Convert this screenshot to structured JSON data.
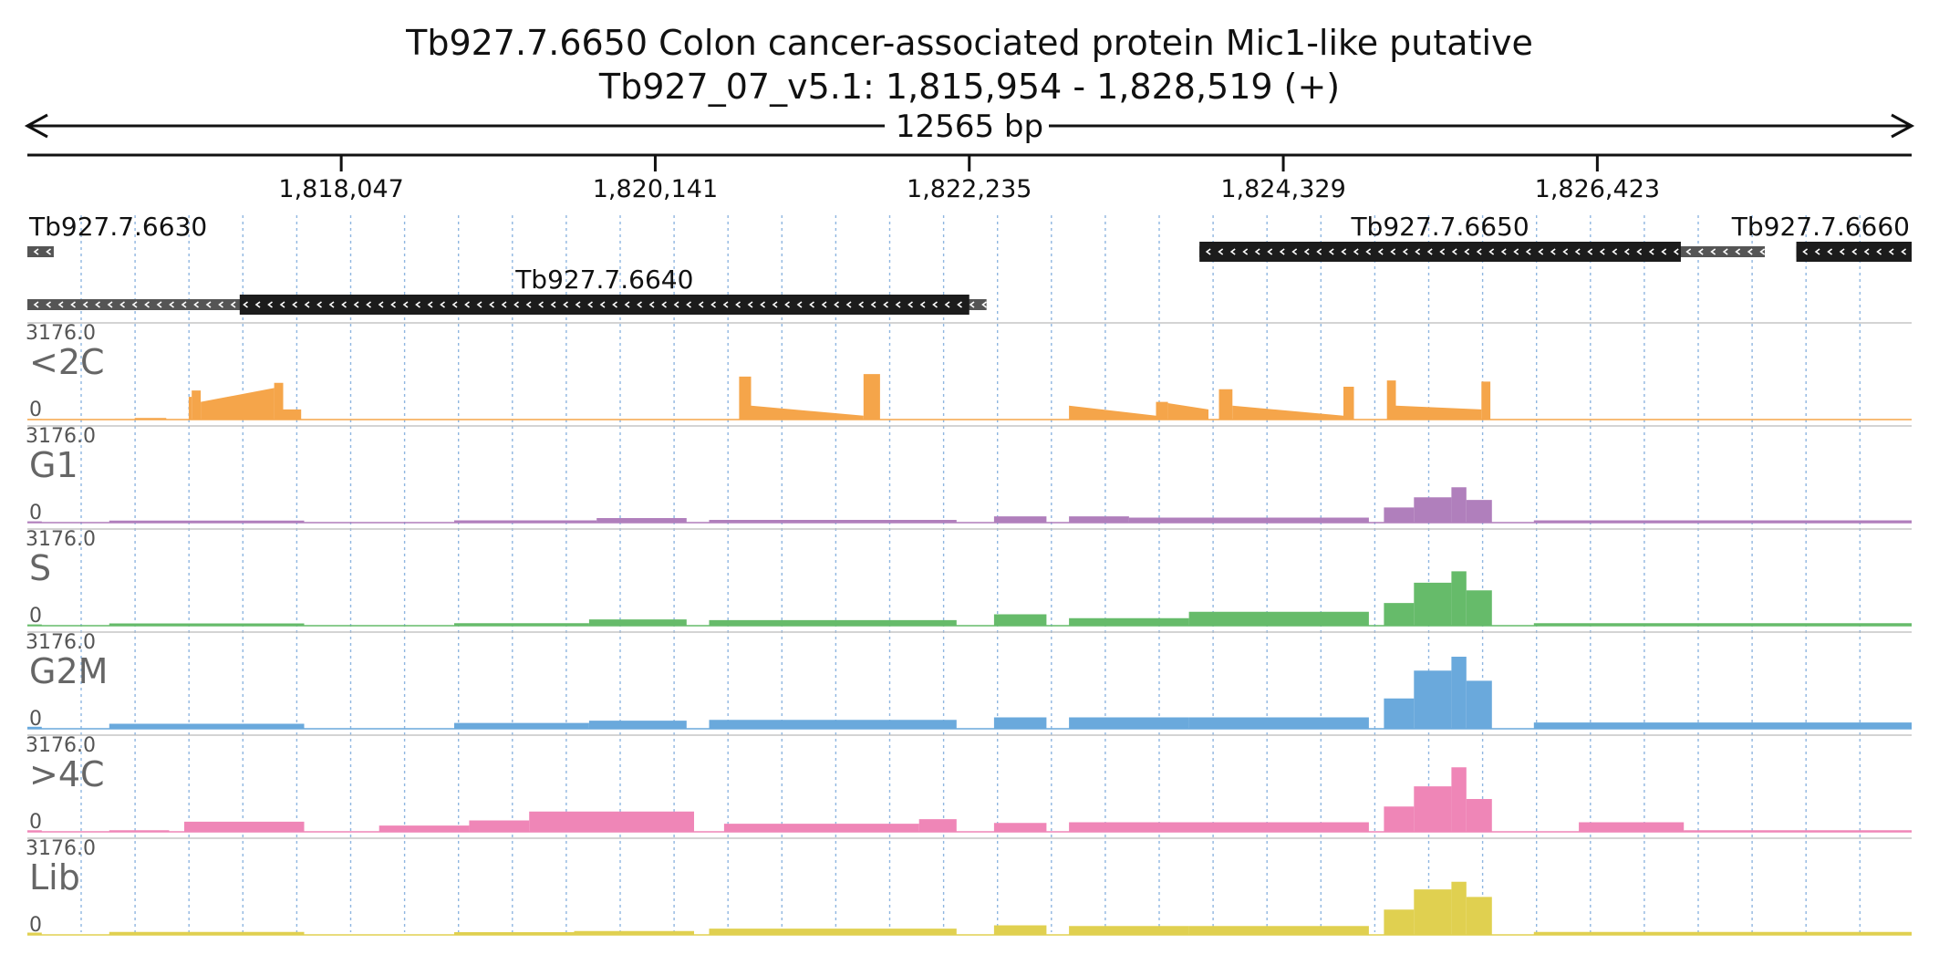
{
  "colors": {
    "background": "#ffffff",
    "text": "#111111",
    "gene_fill": "#1c1c1c",
    "gene_utr": "#555555",
    "grid": "#8fb6e0",
    "track_label": "#666666"
  },
  "chart_data": {
    "type": "area",
    "title": "Tb927.7.6650  Colon cancer-associated protein Mic1-like  putative",
    "subtitle": "Tb927_07_v5.1: 1,815,954 - 1,828,519 (+)",
    "span_label": "12565 bp",
    "region": {
      "chrom": "Tb927_07_v5.1",
      "start": 1815954,
      "end": 1828519,
      "strand": "+"
    },
    "xlim": [
      1815954,
      1828519
    ],
    "x_ticks": [
      {
        "value": 1818047,
        "label": "1,818,047"
      },
      {
        "value": 1820141,
        "label": "1,820,141"
      },
      {
        "value": 1822235,
        "label": "1,822,235"
      },
      {
        "value": 1824329,
        "label": "1,824,329"
      },
      {
        "value": 1826423,
        "label": "1,826,423"
      }
    ],
    "grid": true,
    "grid_style": "dotted-vertical",
    "genes": [
      {
        "name": "Tb927.7.6630",
        "utr": [
          1815954,
          1816130
        ],
        "cds": null,
        "strand": "-",
        "row": 0,
        "label_anchor": "start"
      },
      {
        "name": "Tb927.7.6640",
        "utr": [
          1815954,
          1822350
        ],
        "cds": [
          1817370,
          1822235
        ],
        "strand": "-",
        "row": 1,
        "label_anchor": "middle"
      },
      {
        "name": "Tb927.7.6650",
        "utr": [
          1823770,
          1827540
        ],
        "cds": [
          1823770,
          1826980
        ],
        "strand": "-",
        "row": 0,
        "label_anchor": "middle"
      },
      {
        "name": "Tb927.7.6660",
        "utr": [
          1827750,
          1828519
        ],
        "cds": [
          1827750,
          1828519
        ],
        "strand": "-",
        "row": 0,
        "label_anchor": "end"
      }
    ],
    "tracks": [
      {
        "name": "<2C",
        "max_label": "3176.0",
        "min_label": "0",
        "ylim": [
          0,
          3176
        ],
        "color": "#f5a54a",
        "segments": [
          {
            "start": 1815954,
            "end": 1816050,
            "level": [
              20,
              20
            ]
          },
          {
            "start": 1816670,
            "end": 1816880,
            "level": [
              60,
              60
            ]
          },
          {
            "start": 1817030,
            "end": 1817050,
            "level": [
              900,
              900
            ]
          },
          {
            "start": 1817050,
            "end": 1817110,
            "level": [
              1150,
              1150
            ]
          },
          {
            "start": 1817110,
            "end": 1817600,
            "level": [
              700,
              1250
            ]
          },
          {
            "start": 1817600,
            "end": 1817660,
            "level": [
              1450,
              1450
            ]
          },
          {
            "start": 1817660,
            "end": 1817780,
            "level": [
              400,
              400
            ]
          },
          {
            "start": 1820700,
            "end": 1820780,
            "level": [
              1700,
              1700
            ]
          },
          {
            "start": 1820780,
            "end": 1821530,
            "level": [
              550,
              150
            ]
          },
          {
            "start": 1821530,
            "end": 1821640,
            "level": [
              1800,
              1800
            ]
          },
          {
            "start": 1822900,
            "end": 1823480,
            "level": [
              550,
              150
            ]
          },
          {
            "start": 1823480,
            "end": 1823560,
            "level": [
              700,
              700
            ]
          },
          {
            "start": 1823560,
            "end": 1823830,
            "level": [
              650,
              400
            ]
          },
          {
            "start": 1823900,
            "end": 1823990,
            "level": [
              1200,
              1200
            ]
          },
          {
            "start": 1823990,
            "end": 1824730,
            "level": [
              550,
              150
            ]
          },
          {
            "start": 1824730,
            "end": 1824800,
            "level": [
              1300,
              1300
            ]
          },
          {
            "start": 1825020,
            "end": 1825080,
            "level": [
              1550,
              1550
            ]
          },
          {
            "start": 1825080,
            "end": 1825650,
            "level": [
              550,
              400
            ]
          },
          {
            "start": 1825650,
            "end": 1825710,
            "level": [
              1500,
              1500
            ]
          }
        ]
      },
      {
        "name": "G1",
        "max_label": "3176.0",
        "min_label": "0",
        "ylim": [
          0,
          3176
        ],
        "color": "#b07fbc",
        "segments": [
          {
            "start": 1815954,
            "end": 1816050,
            "level": [
              50,
              50
            ]
          },
          {
            "start": 1816500,
            "end": 1817800,
            "level": [
              80,
              80
            ]
          },
          {
            "start": 1818800,
            "end": 1819750,
            "level": [
              90,
              90
            ]
          },
          {
            "start": 1819750,
            "end": 1820350,
            "level": [
              180,
              180
            ]
          },
          {
            "start": 1820500,
            "end": 1822150,
            "level": [
              110,
              110
            ]
          },
          {
            "start": 1822400,
            "end": 1822750,
            "level": [
              250,
              250
            ]
          },
          {
            "start": 1822900,
            "end": 1823300,
            "level": [
              250,
              250
            ]
          },
          {
            "start": 1823300,
            "end": 1824900,
            "level": [
              200,
              200
            ]
          },
          {
            "start": 1825000,
            "end": 1825200,
            "level": [
              600,
              600
            ]
          },
          {
            "start": 1825200,
            "end": 1825450,
            "level": [
              1000,
              1000
            ]
          },
          {
            "start": 1825450,
            "end": 1825550,
            "level": [
              1400,
              1400
            ]
          },
          {
            "start": 1825550,
            "end": 1825720,
            "level": [
              900,
              900
            ]
          },
          {
            "start": 1826000,
            "end": 1828519,
            "level": [
              90,
              90
            ]
          }
        ]
      },
      {
        "name": "S",
        "max_label": "3176.0",
        "min_label": "0",
        "ylim": [
          0,
          3176
        ],
        "color": "#66bb6a",
        "segments": [
          {
            "start": 1815954,
            "end": 1816050,
            "level": [
              50,
              50
            ]
          },
          {
            "start": 1816500,
            "end": 1817800,
            "level": [
              90,
              90
            ]
          },
          {
            "start": 1818800,
            "end": 1819700,
            "level": [
              100,
              100
            ]
          },
          {
            "start": 1819700,
            "end": 1820350,
            "level": [
              250,
              250
            ]
          },
          {
            "start": 1820500,
            "end": 1822150,
            "level": [
              220,
              220
            ]
          },
          {
            "start": 1822400,
            "end": 1822750,
            "level": [
              450,
              450
            ]
          },
          {
            "start": 1822900,
            "end": 1823700,
            "level": [
              300,
              300
            ]
          },
          {
            "start": 1823700,
            "end": 1824900,
            "level": [
              550,
              550
            ]
          },
          {
            "start": 1825000,
            "end": 1825200,
            "level": [
              900,
              900
            ]
          },
          {
            "start": 1825200,
            "end": 1825450,
            "level": [
              1700,
              1700
            ]
          },
          {
            "start": 1825450,
            "end": 1825550,
            "level": [
              2150,
              2150
            ]
          },
          {
            "start": 1825550,
            "end": 1825720,
            "level": [
              1400,
              1400
            ]
          },
          {
            "start": 1826000,
            "end": 1828519,
            "level": [
              100,
              100
            ]
          }
        ]
      },
      {
        "name": "G2M",
        "max_label": "3176.0",
        "min_label": "0",
        "ylim": [
          0,
          3176
        ],
        "color": "#6aa9dc",
        "segments": [
          {
            "start": 1815954,
            "end": 1816050,
            "level": [
              80,
              80
            ]
          },
          {
            "start": 1816500,
            "end": 1817800,
            "level": [
              200,
              200
            ]
          },
          {
            "start": 1818800,
            "end": 1819700,
            "level": [
              230,
              230
            ]
          },
          {
            "start": 1819700,
            "end": 1820350,
            "level": [
              320,
              320
            ]
          },
          {
            "start": 1820500,
            "end": 1822150,
            "level": [
              350,
              350
            ]
          },
          {
            "start": 1822400,
            "end": 1822750,
            "level": [
              450,
              450
            ]
          },
          {
            "start": 1822900,
            "end": 1823700,
            "level": [
              450,
              450
            ]
          },
          {
            "start": 1823700,
            "end": 1824900,
            "level": [
              450,
              450
            ]
          },
          {
            "start": 1825000,
            "end": 1825200,
            "level": [
              1200,
              1200
            ]
          },
          {
            "start": 1825200,
            "end": 1825450,
            "level": [
              2300,
              2300
            ]
          },
          {
            "start": 1825450,
            "end": 1825550,
            "level": [
              2850,
              2850
            ]
          },
          {
            "start": 1825550,
            "end": 1825720,
            "level": [
              1900,
              1900
            ]
          },
          {
            "start": 1826000,
            "end": 1828519,
            "level": [
              250,
              250
            ]
          }
        ]
      },
      {
        "name": ">4C",
        "max_label": "3176.0",
        "min_label": "0",
        "ylim": [
          0,
          3176
        ],
        "color": "#ef86b7",
        "segments": [
          {
            "start": 1815954,
            "end": 1816050,
            "level": [
              60,
              60
            ]
          },
          {
            "start": 1816500,
            "end": 1816900,
            "level": [
              60,
              60
            ]
          },
          {
            "start": 1817000,
            "end": 1817800,
            "level": [
              400,
              400
            ]
          },
          {
            "start": 1818300,
            "end": 1818900,
            "level": [
              250,
              250
            ]
          },
          {
            "start": 1818900,
            "end": 1819300,
            "level": [
              450,
              450
            ]
          },
          {
            "start": 1819300,
            "end": 1820400,
            "level": [
              800,
              800
            ]
          },
          {
            "start": 1820600,
            "end": 1821900,
            "level": [
              320,
              320
            ]
          },
          {
            "start": 1821900,
            "end": 1822150,
            "level": [
              500,
              500
            ]
          },
          {
            "start": 1822400,
            "end": 1822750,
            "level": [
              350,
              350
            ]
          },
          {
            "start": 1822900,
            "end": 1824900,
            "level": [
              380,
              380
            ]
          },
          {
            "start": 1825000,
            "end": 1825200,
            "level": [
              1000,
              1000
            ]
          },
          {
            "start": 1825200,
            "end": 1825450,
            "level": [
              1800,
              1800
            ]
          },
          {
            "start": 1825450,
            "end": 1825550,
            "level": [
              2550,
              2550
            ]
          },
          {
            "start": 1825550,
            "end": 1825720,
            "level": [
              1300,
              1300
            ]
          },
          {
            "start": 1826300,
            "end": 1827000,
            "level": [
              380,
              380
            ]
          },
          {
            "start": 1827000,
            "end": 1828519,
            "level": [
              60,
              60
            ]
          }
        ]
      },
      {
        "name": "Lib",
        "max_label": "3176.0",
        "min_label": "0",
        "ylim": [
          0,
          3176
        ],
        "color": "#e0d050",
        "segments": [
          {
            "start": 1815954,
            "end": 1816050,
            "level": [
              90,
              90
            ]
          },
          {
            "start": 1816500,
            "end": 1817800,
            "level": [
              120,
              120
            ]
          },
          {
            "start": 1818800,
            "end": 1819600,
            "level": [
              110,
              110
            ]
          },
          {
            "start": 1819600,
            "end": 1820400,
            "level": [
              150,
              150
            ]
          },
          {
            "start": 1820500,
            "end": 1822150,
            "level": [
              250,
              250
            ]
          },
          {
            "start": 1822400,
            "end": 1822750,
            "level": [
              380,
              380
            ]
          },
          {
            "start": 1822900,
            "end": 1823700,
            "level": [
              350,
              350
            ]
          },
          {
            "start": 1823700,
            "end": 1824900,
            "level": [
              350,
              350
            ]
          },
          {
            "start": 1825000,
            "end": 1825200,
            "level": [
              1000,
              1000
            ]
          },
          {
            "start": 1825200,
            "end": 1825450,
            "level": [
              1800,
              1800
            ]
          },
          {
            "start": 1825450,
            "end": 1825550,
            "level": [
              2100,
              2100
            ]
          },
          {
            "start": 1825550,
            "end": 1825720,
            "level": [
              1500,
              1500
            ]
          },
          {
            "start": 1826000,
            "end": 1828519,
            "level": [
              120,
              120
            ]
          }
        ]
      }
    ]
  }
}
